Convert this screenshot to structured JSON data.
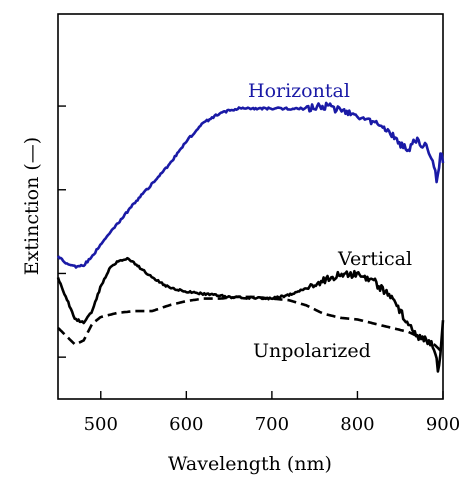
{
  "chart_data": {
    "type": "line",
    "xlabel": "Wavelength (nm)",
    "ylabel": "Extinction (—)",
    "xlim": [
      450,
      900
    ],
    "ylim": [
      0,
      4.6
    ],
    "x_ticks": [
      500,
      600,
      700,
      800,
      900
    ],
    "y_ticks": [
      0.5,
      1.5,
      2.5,
      3.5
    ],
    "y_tick_labels_shown": false,
    "grid": false,
    "colors": {
      "Horizontal": "#1a1aa6",
      "Vertical": "#000000",
      "Unpolarized": "#000000"
    },
    "series": [
      {
        "name": "Horizontal",
        "style": "solid",
        "x": [
          450,
          460,
          470,
          480,
          490,
          500,
          520,
          540,
          560,
          580,
          600,
          620,
          640,
          660,
          680,
          700,
          720,
          740,
          760,
          765,
          780,
          800,
          820,
          840,
          850,
          860,
          870,
          875,
          880,
          885,
          890,
          893,
          897,
          900
        ],
        "y": [
          1.7,
          1.62,
          1.58,
          1.6,
          1.7,
          1.85,
          2.1,
          2.35,
          2.57,
          2.8,
          3.08,
          3.3,
          3.42,
          3.47,
          3.47,
          3.47,
          3.47,
          3.47,
          3.5,
          3.5,
          3.45,
          3.38,
          3.3,
          3.15,
          3.05,
          2.98,
          3.12,
          2.97,
          3.05,
          2.9,
          2.8,
          2.55,
          2.95,
          2.85
        ]
      },
      {
        "name": "Vertical",
        "style": "solid",
        "x": [
          450,
          460,
          470,
          480,
          490,
          500,
          510,
          520,
          530,
          540,
          560,
          580,
          600,
          650,
          700,
          720,
          740,
          760,
          780,
          800,
          820,
          840,
          850,
          860,
          870,
          880,
          890,
          895,
          900
        ],
        "y": [
          1.45,
          1.2,
          0.95,
          0.92,
          1.05,
          1.35,
          1.55,
          1.65,
          1.68,
          1.62,
          1.45,
          1.33,
          1.28,
          1.22,
          1.2,
          1.24,
          1.32,
          1.42,
          1.48,
          1.5,
          1.4,
          1.2,
          1.05,
          0.88,
          0.75,
          0.7,
          0.62,
          0.3,
          0.9
        ]
      },
      {
        "name": "Unpolarized",
        "style": "dashed",
        "x": [
          450,
          460,
          470,
          480,
          490,
          500,
          520,
          540,
          560,
          580,
          600,
          620,
          640,
          660,
          680,
          700,
          720,
          740,
          760,
          780,
          800,
          820,
          840,
          860,
          880,
          890,
          900
        ],
        "y": [
          0.85,
          0.75,
          0.65,
          0.7,
          0.9,
          0.98,
          1.03,
          1.05,
          1.05,
          1.12,
          1.17,
          1.2,
          1.2,
          1.22,
          1.22,
          1.2,
          1.18,
          1.12,
          1.02,
          0.97,
          0.95,
          0.9,
          0.85,
          0.8,
          0.7,
          0.65,
          0.55
        ]
      }
    ]
  }
}
